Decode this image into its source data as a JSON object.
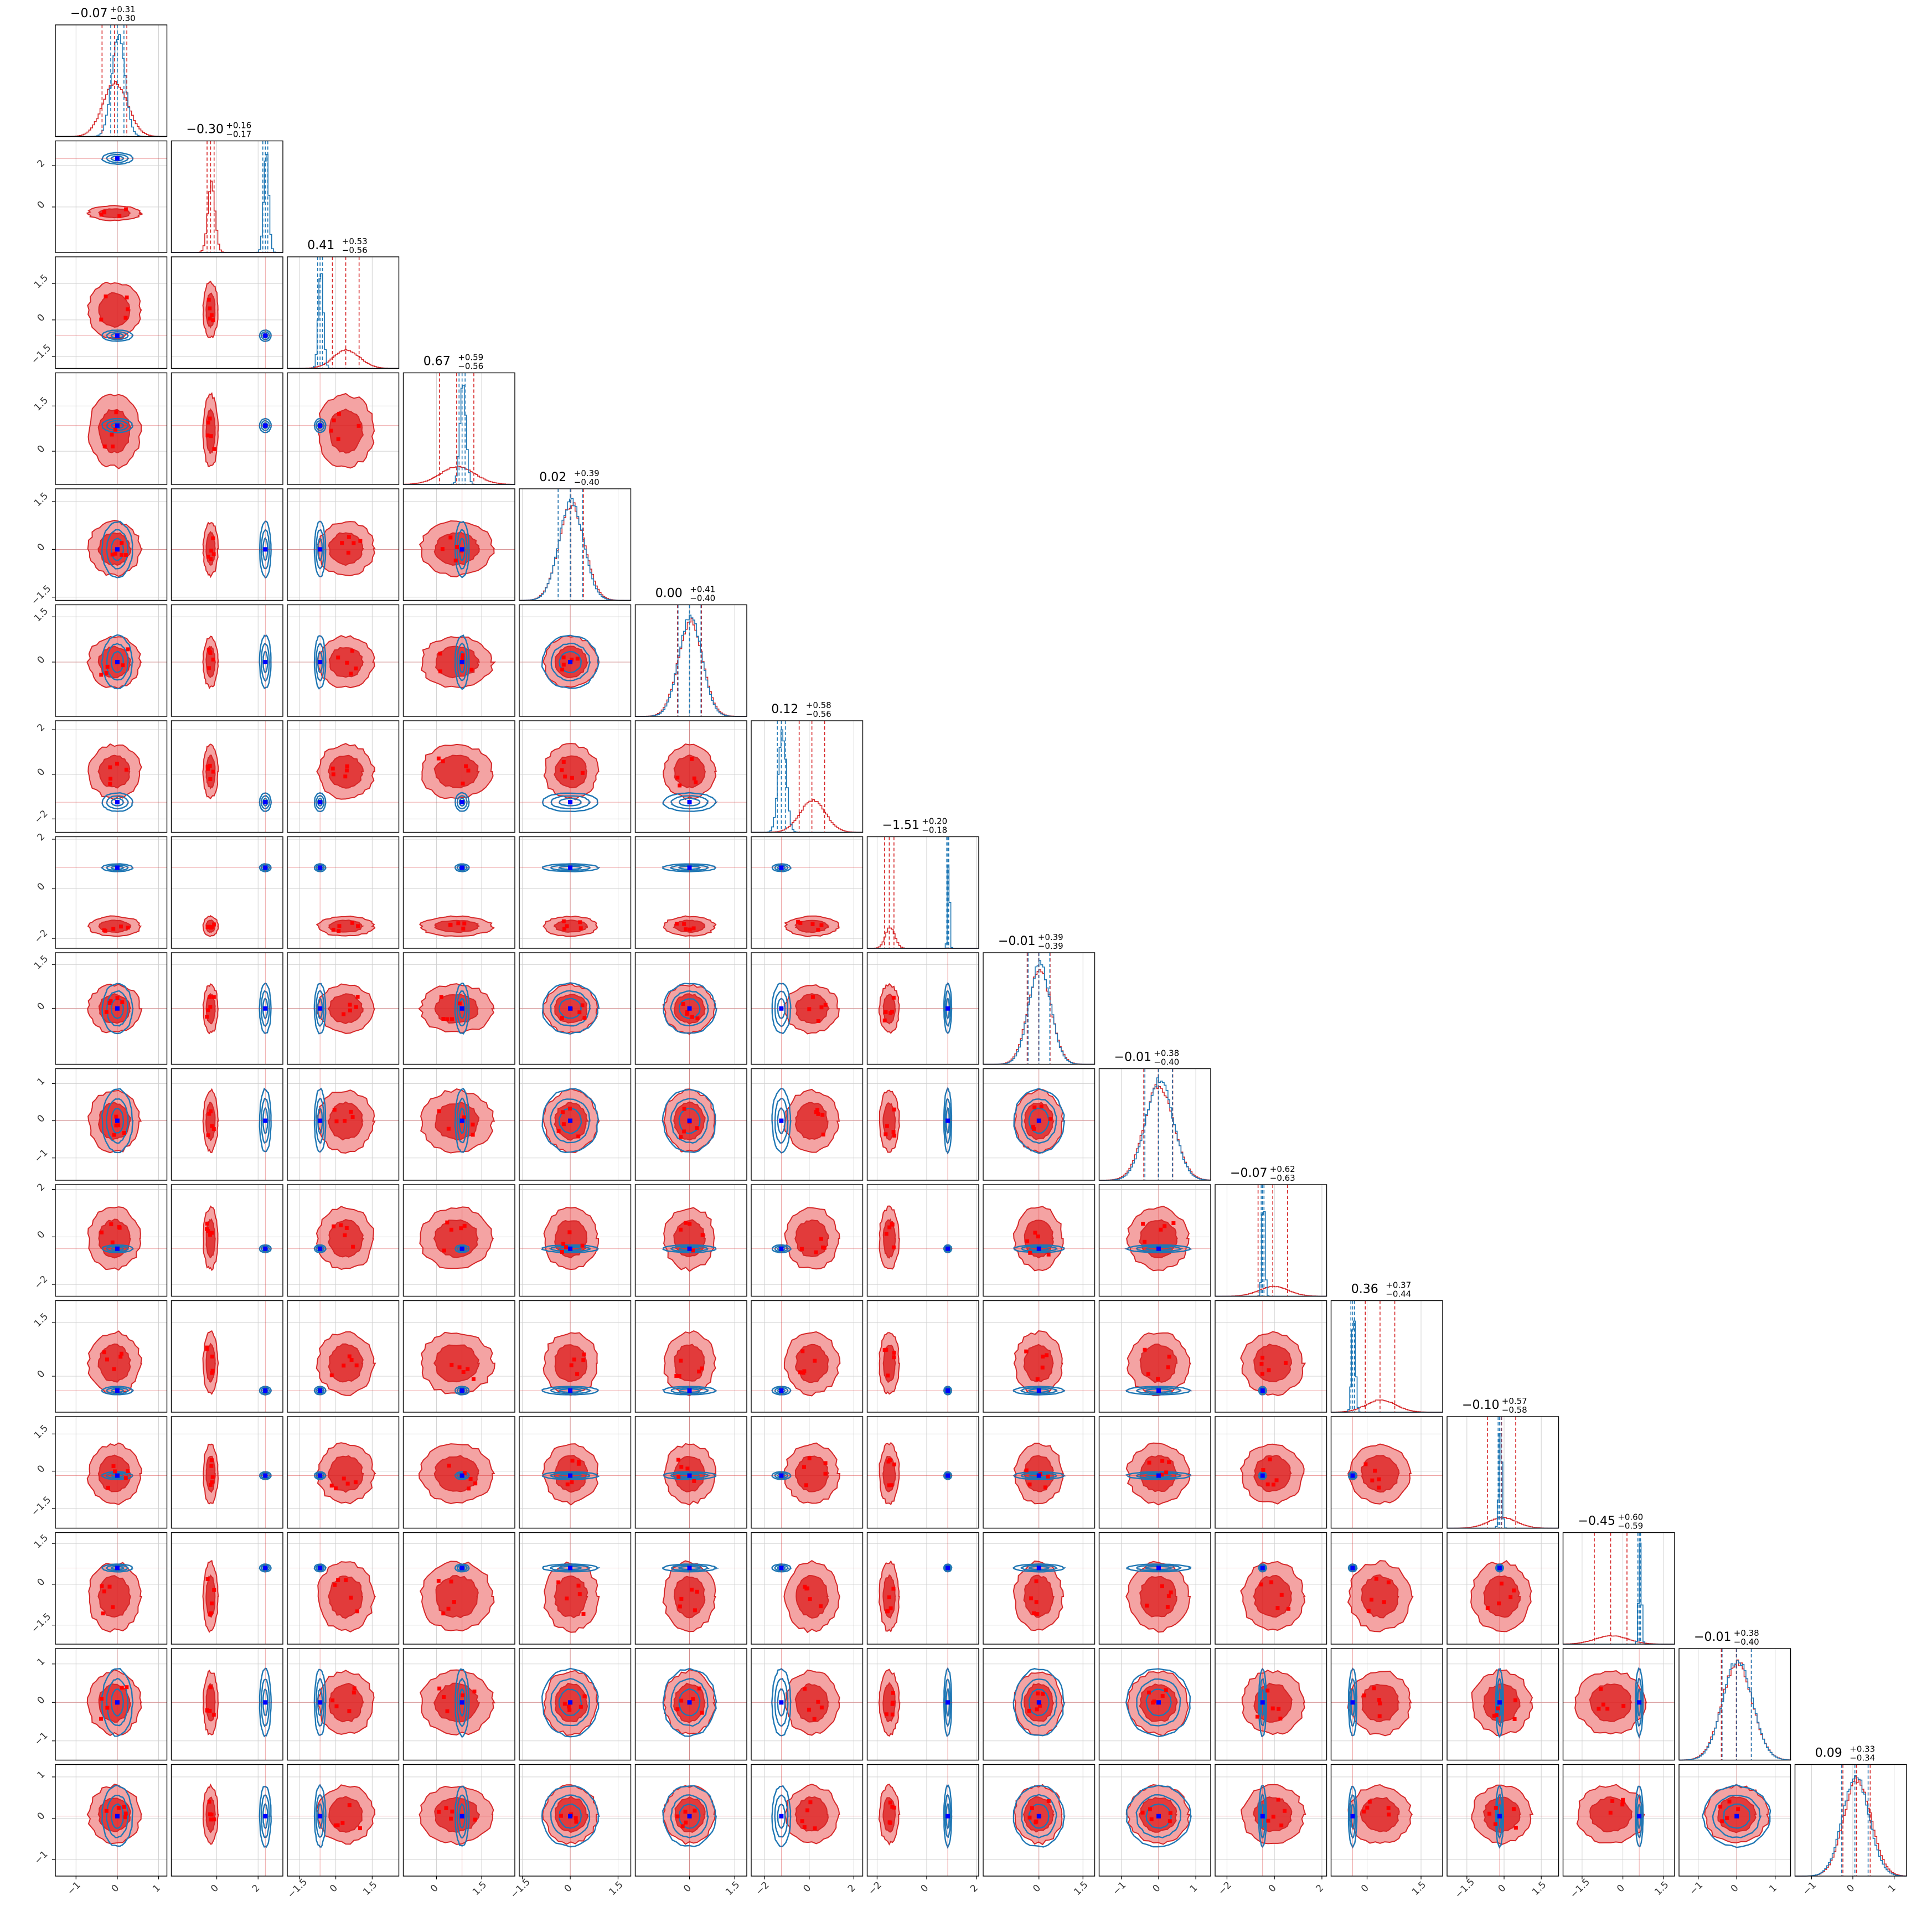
{
  "chart_data": {
    "type": "corner",
    "n_params": 16,
    "colors": {
      "red_posterior": "#d62728",
      "blue_posterior": "#1f77b4",
      "red_fill_light": "#f4a3a3",
      "red_fill_dark": "#e23b3b",
      "truth_marker": "#0000ff",
      "sample_marker": "#ff0000"
    },
    "grid": true,
    "diagonal_titles": [
      {
        "median": "−0.07",
        "plus": "+0.31",
        "minus": "−0.30"
      },
      {
        "median": "−0.30",
        "plus": "+0.16",
        "minus": "−0.17"
      },
      {
        "median": "0.41",
        "plus": "+0.53",
        "minus": "−0.56"
      },
      {
        "median": "0.67",
        "plus": "+0.59",
        "minus": "−0.56"
      },
      {
        "median": "0.02",
        "plus": "+0.39",
        "minus": "−0.40"
      },
      {
        "median": "0.00",
        "plus": "+0.41",
        "minus": "−0.40"
      },
      {
        "median": "0.12",
        "plus": "+0.58",
        "minus": "−0.56"
      },
      {
        "median": "−1.51",
        "plus": "+0.20",
        "minus": "−0.18"
      },
      {
        "median": "−0.01",
        "plus": "+0.39",
        "minus": "−0.39"
      },
      {
        "median": "−0.01",
        "plus": "+0.38",
        "minus": "−0.40"
      },
      {
        "median": "−0.07",
        "plus": "+0.62",
        "minus": "−0.63"
      },
      {
        "median": "0.36",
        "plus": "+0.37",
        "minus": "−0.44"
      },
      {
        "median": "−0.10",
        "plus": "+0.57",
        "minus": "−0.58"
      },
      {
        "median": "−0.45",
        "plus": "+0.60",
        "minus": "−0.59"
      },
      {
        "median": "−0.01",
        "plus": "+0.38",
        "minus": "−0.40"
      },
      {
        "median": "0.09",
        "plus": "+0.33",
        "minus": "−0.34"
      }
    ],
    "params": [
      {
        "range": [
          -1.5,
          1.2
        ],
        "ticks": [
          -1,
          0,
          1
        ],
        "red": {
          "mu": -0.07,
          "sd": 0.3
        },
        "blue": {
          "mu": 0.0,
          "sd": 0.16
        },
        "truth": 0.0
      },
      {
        "range": [
          -2.2,
          3.2
        ],
        "ticks": [
          0,
          2
        ],
        "red": {
          "mu": -0.3,
          "sd": 0.17
        },
        "blue": {
          "mu": 2.35,
          "sd": 0.12
        },
        "truth": 2.35
      },
      {
        "range": [
          -2.0,
          2.6
        ],
        "ticks": [
          -1.5,
          0.0,
          1.5
        ],
        "red": {
          "mu": 0.41,
          "sd": 0.55
        },
        "blue": {
          "mu": -0.65,
          "sd": 0.1
        },
        "truth": -0.65
      },
      {
        "range": [
          -1.1,
          2.6
        ],
        "ticks": [
          0.0,
          1.5
        ],
        "red": {
          "mu": 0.67,
          "sd": 0.57
        },
        "blue": {
          "mu": 0.85,
          "sd": 0.1
        },
        "truth": 0.85
      },
      {
        "range": [
          -1.6,
          1.9
        ],
        "ticks": [
          -1.5,
          0.0,
          1.5
        ],
        "red": {
          "mu": 0.02,
          "sd": 0.4
        },
        "blue": {
          "mu": 0.0,
          "sd": 0.38
        },
        "truth": 0.0
      },
      {
        "range": [
          -1.8,
          1.9
        ],
        "ticks": [
          0.0,
          1.5
        ],
        "red": {
          "mu": 0.0,
          "sd": 0.4
        },
        "blue": {
          "mu": 0.0,
          "sd": 0.38
        },
        "truth": 0.0
      },
      {
        "range": [
          -2.6,
          2.4
        ],
        "ticks": [
          -2,
          0,
          2
        ],
        "red": {
          "mu": 0.12,
          "sd": 0.57
        },
        "blue": {
          "mu": -1.25,
          "sd": 0.18
        },
        "truth": -1.25
      },
      {
        "range": [
          -2.4,
          2.1
        ],
        "ticks": [
          -2,
          0,
          2
        ],
        "red": {
          "mu": -1.51,
          "sd": 0.19
        },
        "blue": {
          "mu": 0.85,
          "sd": 0.04
        },
        "truth": 0.85
      },
      {
        "range": [
          -1.9,
          1.9
        ],
        "ticks": [
          0.0,
          1.5
        ],
        "red": {
          "mu": -0.01,
          "sd": 0.39
        },
        "blue": {
          "mu": 0.0,
          "sd": 0.37
        },
        "truth": 0.0
      },
      {
        "range": [
          -1.6,
          1.4
        ],
        "ticks": [
          -1,
          0,
          1
        ],
        "red": {
          "mu": -0.01,
          "sd": 0.39
        },
        "blue": {
          "mu": 0.0,
          "sd": 0.37
        },
        "truth": 0.0
      },
      {
        "range": [
          -2.5,
          2.2
        ],
        "ticks": [
          -2,
          0,
          2
        ],
        "red": {
          "mu": -0.07,
          "sd": 0.62
        },
        "blue": {
          "mu": -0.5,
          "sd": 0.06
        },
        "truth": -0.5
      },
      {
        "range": [
          -1.0,
          2.1
        ],
        "ticks": [
          0.0,
          1.5
        ],
        "red": {
          "mu": 0.36,
          "sd": 0.41
        },
        "blue": {
          "mu": -0.4,
          "sd": 0.05
        },
        "truth": -0.4
      },
      {
        "range": [
          -2.3,
          2.2
        ],
        "ticks": [
          -1.5,
          0.0,
          1.5
        ],
        "red": {
          "mu": -0.1,
          "sd": 0.57
        },
        "blue": {
          "mu": -0.18,
          "sd": 0.06
        },
        "truth": -0.18
      },
      {
        "range": [
          -2.2,
          1.9
        ],
        "ticks": [
          -1.5,
          0.0,
          1.5
        ],
        "red": {
          "mu": -0.45,
          "sd": 0.6
        },
        "blue": {
          "mu": 0.6,
          "sd": 0.05
        },
        "truth": 0.6
      },
      {
        "range": [
          -1.5,
          1.4
        ],
        "ticks": [
          -1,
          0,
          1
        ],
        "red": {
          "mu": -0.01,
          "sd": 0.39
        },
        "blue": {
          "mu": 0.0,
          "sd": 0.38
        },
        "truth": 0.0
      },
      {
        "range": [
          -1.4,
          1.3
        ],
        "ticks": [
          -1,
          0,
          1
        ],
        "red": {
          "mu": 0.09,
          "sd": 0.33
        },
        "blue": {
          "mu": 0.05,
          "sd": 0.32
        },
        "truth": 0.05
      }
    ]
  }
}
